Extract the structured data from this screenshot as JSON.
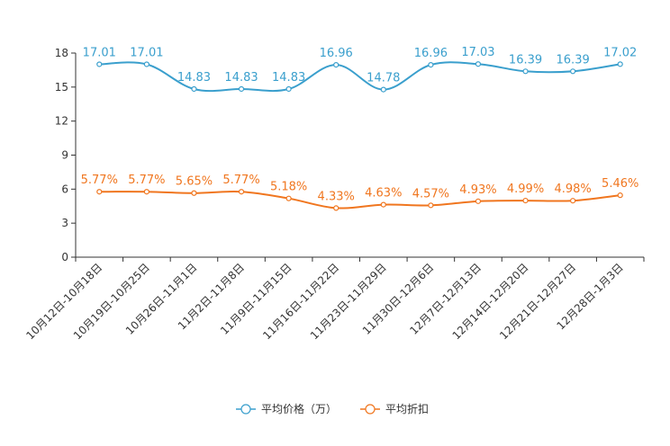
{
  "chart_data": {
    "type": "line",
    "categories": [
      "10月12日-10月18日",
      "10月19日-10月25日",
      "10月26日-11月1日",
      "11月2日-11月8日",
      "11月9日-11月15日",
      "11月16日-11月22日",
      "11月23日-11月29日",
      "11月30日-12月6日",
      "12月7日-12月13日",
      "12月14日-12月20日",
      "12月21日-12月27日",
      "12月28日-1月3日"
    ],
    "series": [
      {
        "name": "平均价格（万）",
        "color": "#3a9fcd",
        "values": [
          17.01,
          17.01,
          14.83,
          14.83,
          14.83,
          16.96,
          14.78,
          16.96,
          17.03,
          16.39,
          16.39,
          17.02
        ],
        "labels": [
          "17.01",
          "17.01",
          "14.83",
          "14.83",
          "14.83",
          "16.96",
          "14.78",
          "16.96",
          "17.03",
          "16.39",
          "16.39",
          "17.02"
        ]
      },
      {
        "name": "平均折扣",
        "color": "#f0761f",
        "values": [
          5.77,
          5.77,
          5.65,
          5.77,
          5.18,
          4.33,
          4.63,
          4.57,
          4.93,
          4.99,
          4.98,
          5.46
        ],
        "labels": [
          "5.77%",
          "5.77%",
          "5.65%",
          "5.77%",
          "5.18%",
          "4.33%",
          "4.63%",
          "4.57%",
          "4.93%",
          "4.99%",
          "4.98%",
          "5.46%"
        ]
      }
    ],
    "y_ticks": [
      "0",
      "3",
      "6",
      "9",
      "12",
      "15",
      "18"
    ],
    "ylim": [
      0,
      18
    ],
    "xlabel": "",
    "ylabel": "",
    "title": "",
    "grid": false,
    "legend_position": "bottom-center"
  }
}
